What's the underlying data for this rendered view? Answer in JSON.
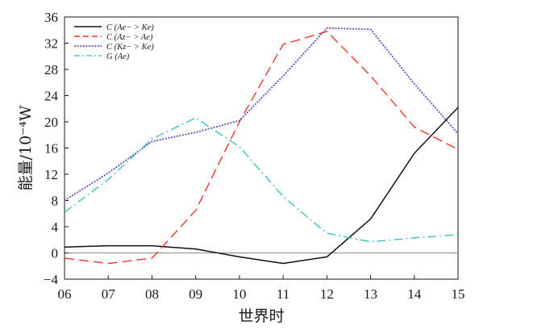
{
  "chart_data": {
    "type": "line",
    "title": "",
    "xlabel": "世界时",
    "ylabel": "能量/10⁻⁴W",
    "categories": [
      "06",
      "07",
      "08",
      "09",
      "10",
      "11",
      "12",
      "13",
      "14",
      "15"
    ],
    "ylim": [
      -4,
      36
    ],
    "yticks": [
      "−4",
      "0",
      "4",
      "8",
      "12",
      "16",
      "20",
      "24",
      "28",
      "32",
      "36"
    ],
    "yticks_values": [
      -4,
      0,
      4,
      8,
      12,
      16,
      20,
      24,
      28,
      32,
      36
    ],
    "zero_line": true,
    "legend_position": "top-left",
    "series": [
      {
        "name": "C (Ae− > Ke)",
        "color": "#111111",
        "style": "solid",
        "values": [
          0.9,
          1.1,
          1.1,
          0.6,
          -0.6,
          -1.6,
          -0.6,
          5.2,
          15.2,
          22.2
        ]
      },
      {
        "name": "C (Az− > Ae)",
        "color": "#e8392b",
        "style": "dashed",
        "values": [
          -0.8,
          -1.6,
          -0.8,
          6.5,
          20.0,
          31.8,
          33.8,
          27.0,
          19.2,
          15.8
        ]
      },
      {
        "name": "C (Kz− > Ke)",
        "color": "#5a50c8",
        "style": "dotted",
        "values": [
          8.0,
          12.2,
          17.0,
          18.4,
          20.2,
          27.0,
          34.3,
          34.1,
          25.8,
          18.2
        ]
      },
      {
        "name": "G (Ae)",
        "color": "#2fbfbf",
        "style": "dashdot",
        "values": [
          6.2,
          11.2,
          17.4,
          20.6,
          16.2,
          8.6,
          3.0,
          1.7,
          2.3,
          2.8
        ]
      }
    ]
  }
}
